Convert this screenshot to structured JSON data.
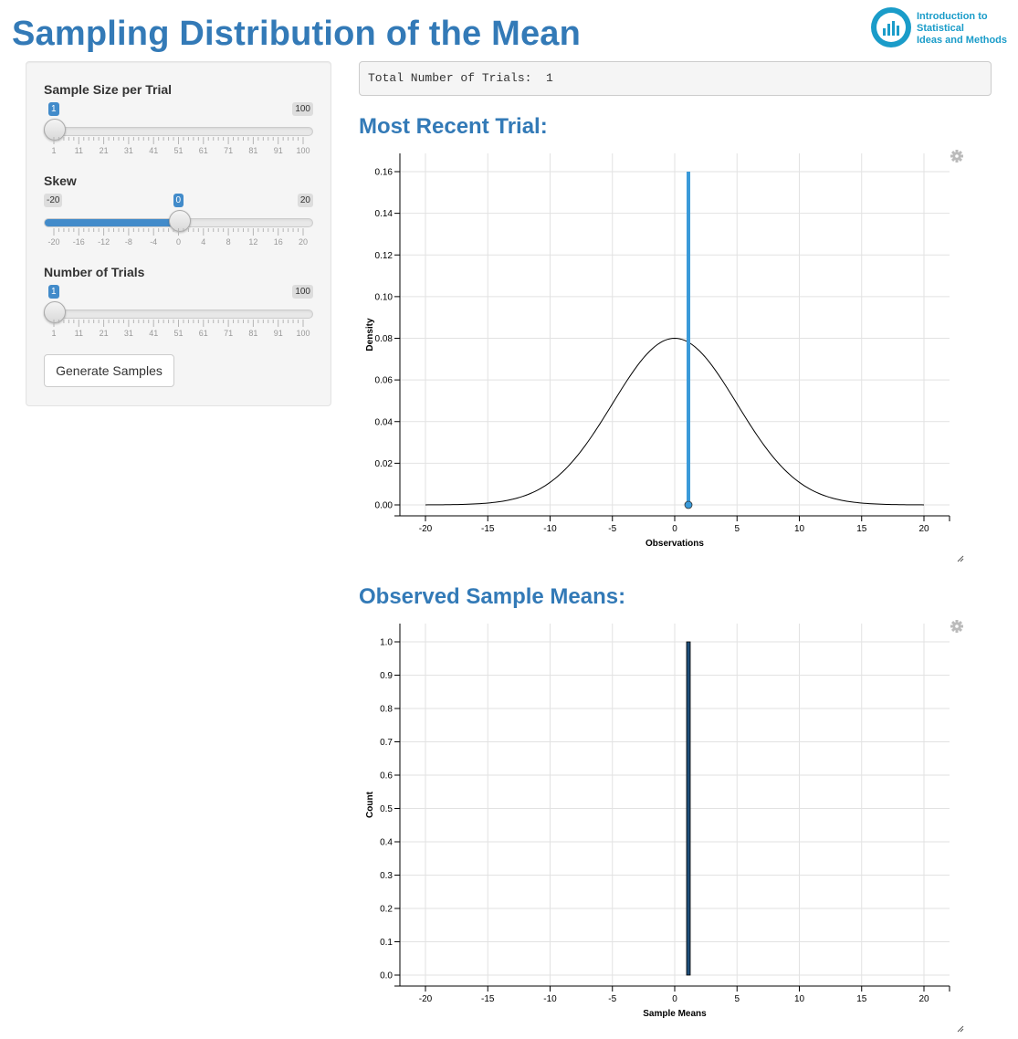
{
  "page": {
    "title": "Sampling Distribution of the Mean"
  },
  "logo": {
    "lines": [
      "Introduction to",
      "Statistical",
      "Ideas and Methods"
    ]
  },
  "controls": {
    "sample_size": {
      "label": "Sample Size per Trial",
      "value": 1,
      "min": 1,
      "max": 100,
      "ticks": [
        "1",
        "11",
        "21",
        "31",
        "41",
        "51",
        "61",
        "71",
        "81",
        "91",
        "100"
      ]
    },
    "skew": {
      "label": "Skew",
      "value": 0,
      "min": -20,
      "max": 20,
      "ticks": [
        "-20",
        "-16",
        "-12",
        "-8",
        "-4",
        "0",
        "4",
        "8",
        "12",
        "16",
        "20"
      ]
    },
    "num_trials": {
      "label": "Number of Trials",
      "value": 1,
      "min": 1,
      "max": 100,
      "ticks": [
        "1",
        "11",
        "21",
        "31",
        "41",
        "51",
        "61",
        "71",
        "81",
        "91",
        "100"
      ]
    },
    "generate_label": "Generate Samples"
  },
  "trials_output": {
    "text": "Total Number of Trials:  1"
  },
  "chart_data": [
    {
      "type": "line",
      "title": "Most Recent Trial:",
      "xlabel": "Observations",
      "ylabel": "Density",
      "xlim": [
        -20,
        20
      ],
      "ylim": [
        0,
        0.16
      ],
      "x_ticks": [
        -20,
        -15,
        -10,
        -5,
        0,
        5,
        10,
        15,
        20
      ],
      "y_ticks": [
        "0.00",
        "0.02",
        "0.04",
        "0.06",
        "0.08",
        "0.10",
        "0.12",
        "0.14",
        "0.16"
      ],
      "curve": {
        "name": "density",
        "mean": 0,
        "sd": 5,
        "peak": 0.08,
        "color": "#000000"
      },
      "observations": [
        {
          "x": 1.1,
          "y": 0.16,
          "color": "#3a9ad9"
        }
      ],
      "grid": true
    },
    {
      "type": "bar",
      "title": "Observed Sample Means:",
      "xlabel": "Sample Means",
      "ylabel": "Count",
      "xlim": [
        -20,
        20
      ],
      "ylim": [
        0,
        1.0
      ],
      "x_ticks": [
        -20,
        -15,
        -10,
        -5,
        0,
        5,
        10,
        15,
        20
      ],
      "y_ticks": [
        "0.0",
        "0.1",
        "0.2",
        "0.3",
        "0.4",
        "0.5",
        "0.6",
        "0.7",
        "0.8",
        "0.9",
        "1.0"
      ],
      "bars": [
        {
          "x": 1.1,
          "count": 1.0,
          "color": "#1f4e79"
        }
      ],
      "grid": true
    }
  ],
  "colors": {
    "accent": "#337ab7",
    "slider": "#428bca",
    "observation": "#3a9ad9"
  },
  "icons": {
    "settings": "gear-icon",
    "resize": "resize-handle-icon"
  }
}
